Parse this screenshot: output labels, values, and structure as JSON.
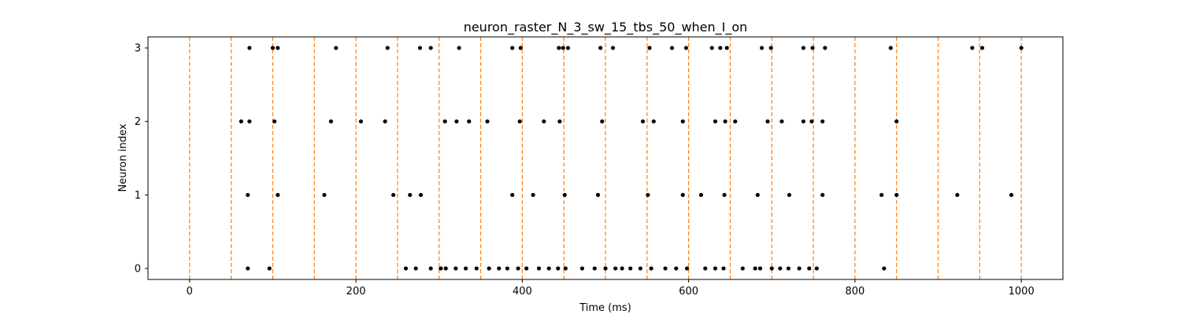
{
  "chart_data": {
    "type": "scatter",
    "title": "neuron_raster_N_3_sw_15_tbs_50_when_I_on",
    "xlabel": "Time (ms)",
    "ylabel": "Neuron index",
    "xlim": [
      -50,
      1050
    ],
    "ylim": [
      -0.15,
      3.15
    ],
    "xticks": [
      0,
      200,
      400,
      600,
      800,
      1000
    ],
    "yticks": [
      0,
      1,
      2,
      3
    ],
    "grid": false,
    "marker_color": "#000000",
    "vline_color": "#ff7f0e",
    "vlines_x": [
      0,
      50,
      100,
      150,
      200,
      250,
      300,
      350,
      400,
      450,
      500,
      550,
      600,
      650,
      700,
      750,
      800,
      850,
      900,
      950,
      1000
    ],
    "series": [
      {
        "neuron": 0,
        "spikes": [
          70,
          96,
          260,
          272,
          290,
          302,
          308,
          320,
          332,
          345,
          360,
          372,
          382,
          395,
          405,
          420,
          432,
          443,
          452,
          472,
          487,
          500,
          512,
          520,
          530,
          542,
          555,
          572,
          585,
          598,
          620,
          632,
          642,
          665,
          680,
          686,
          700,
          710,
          720,
          733,
          745,
          754,
          835
        ]
      },
      {
        "neuron": 1,
        "spikes": [
          70,
          106,
          162,
          245,
          265,
          278,
          388,
          413,
          451,
          491,
          551,
          593,
          615,
          643,
          683,
          721,
          761,
          832,
          850,
          923,
          988
        ]
      },
      {
        "neuron": 2,
        "spikes": [
          62,
          72,
          102,
          170,
          206,
          235,
          307,
          321,
          336,
          358,
          397,
          426,
          445,
          496,
          545,
          558,
          593,
          632,
          644,
          656,
          695,
          712,
          738,
          748,
          761,
          850
        ]
      },
      {
        "neuron": 3,
        "spikes": [
          72,
          100,
          106,
          176,
          238,
          277,
          290,
          324,
          388,
          398,
          444,
          449,
          455,
          494,
          509,
          553,
          580,
          597,
          628,
          638,
          646,
          688,
          699,
          738,
          749,
          764,
          843,
          941,
          953,
          1000
        ]
      }
    ]
  }
}
